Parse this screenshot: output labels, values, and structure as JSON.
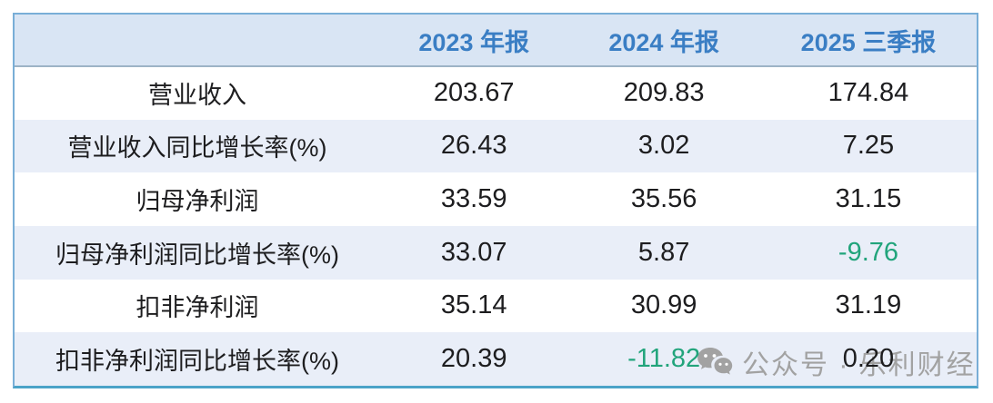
{
  "chart_data": {
    "type": "table",
    "columns": [
      "",
      "2023 年报",
      "2024 年报",
      "2025 三季报"
    ],
    "rows": [
      {
        "label": "营业收入",
        "values": [
          "203.67",
          "209.83",
          "174.84"
        ]
      },
      {
        "label": "营业收入同比增长率(%)",
        "values": [
          "26.43",
          "3.02",
          "7.25"
        ]
      },
      {
        "label": "归母净利润",
        "values": [
          "33.59",
          "35.56",
          "31.15"
        ]
      },
      {
        "label": "归母净利润同比增长率(%)",
        "values": [
          "33.07",
          "5.87",
          "-9.76"
        ]
      },
      {
        "label": "扣非净利润",
        "values": [
          "35.14",
          "30.99",
          "31.19"
        ]
      },
      {
        "label": "扣非净利润同比增长率(%)",
        "values": [
          "20.39",
          "-11.82",
          "0.20"
        ]
      }
    ],
    "layout": {
      "alt_row_shading": "even data rows tinted",
      "value_alignment": "center"
    }
  },
  "watermark": {
    "icon": "wechat-icon",
    "text": "公众号 · 乐利财经"
  },
  "colors": {
    "header_text": "#3a7ec4",
    "header_bg": "#d9e5f4",
    "row_alt_bg": "#e9eef8",
    "table_border": "#79aed7",
    "table_bottom_border": "#4ba3c8",
    "header_separator": "#9db3c6",
    "negative_value": "#21a47b",
    "watermark_gray": "#a2a2a2",
    "body_text": "#1d1d1f"
  }
}
